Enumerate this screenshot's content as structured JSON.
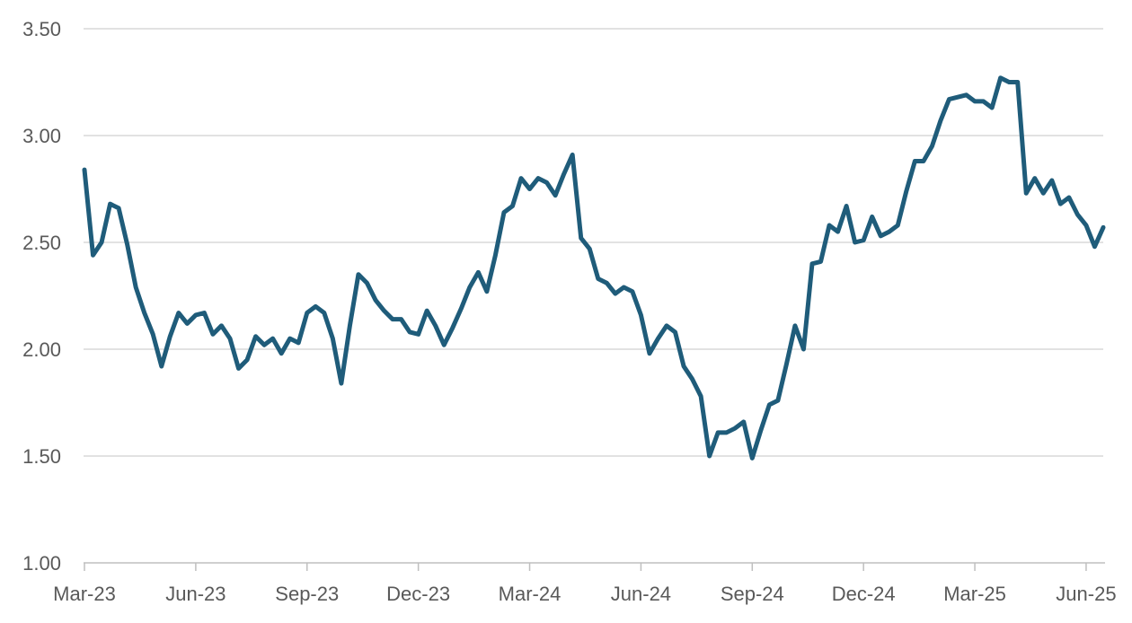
{
  "chart_data": {
    "type": "line",
    "title": "",
    "xlabel": "",
    "ylabel": "",
    "ylim": [
      1.0,
      3.5
    ],
    "y_ticks": [
      "1.00",
      "1.50",
      "2.00",
      "2.50",
      "3.00",
      "3.50"
    ],
    "x_ticks": [
      {
        "label": "Mar-23",
        "week": 0
      },
      {
        "label": "Jun-23",
        "week": 13
      },
      {
        "label": "Sep-23",
        "week": 26
      },
      {
        "label": "Dec-23",
        "week": 39
      },
      {
        "label": "Mar-24",
        "week": 52
      },
      {
        "label": "Jun-24",
        "week": 65
      },
      {
        "label": "Sep-24",
        "week": 78
      },
      {
        "label": "Dec-24",
        "week": 91
      },
      {
        "label": "Mar-25",
        "week": 104
      },
      {
        "label": "Jun-25",
        "week": 117
      }
    ],
    "grid": true,
    "legend": "none",
    "line_color": "#1f5c7a",
    "frequency": "weekly",
    "series": [
      {
        "values": [
          2.84,
          2.44,
          2.5,
          2.68,
          2.66,
          2.49,
          2.29,
          2.17,
          2.07,
          1.92,
          2.06,
          2.17,
          2.12,
          2.16,
          2.17,
          2.07,
          2.11,
          2.05,
          1.91,
          1.95,
          2.06,
          2.02,
          2.05,
          1.98,
          2.05,
          2.03,
          2.17,
          2.2,
          2.17,
          2.05,
          1.84,
          2.11,
          2.35,
          2.31,
          2.23,
          2.18,
          2.14,
          2.14,
          2.08,
          2.07,
          2.18,
          2.11,
          2.02,
          2.1,
          2.19,
          2.29,
          2.36,
          2.27,
          2.44,
          2.64,
          2.67,
          2.8,
          2.75,
          2.8,
          2.78,
          2.72,
          2.82,
          2.91,
          2.52,
          2.47,
          2.33,
          2.31,
          2.26,
          2.29,
          2.27,
          2.16,
          1.98,
          2.05,
          2.11,
          2.08,
          1.92,
          1.86,
          1.78,
          1.5,
          1.61,
          1.61,
          1.63,
          1.66,
          1.49,
          1.62,
          1.74,
          1.76,
          1.93,
          2.11,
          2.0,
          2.4,
          2.41,
          2.58,
          2.55,
          2.67,
          2.5,
          2.51,
          2.62,
          2.53,
          2.55,
          2.58,
          2.74,
          2.88,
          2.88,
          2.95,
          3.07,
          3.17,
          3.18,
          3.19,
          3.16,
          3.16,
          3.13,
          3.27,
          3.25,
          3.25,
          2.73,
          2.8,
          2.73,
          2.79,
          2.68,
          2.71,
          2.63,
          2.58,
          2.48,
          2.57
        ]
      }
    ]
  }
}
